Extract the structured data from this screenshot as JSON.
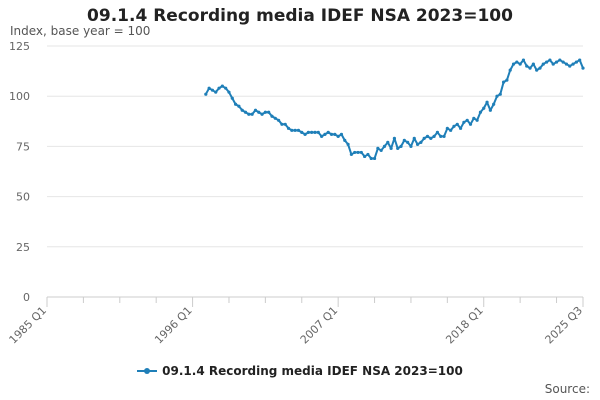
{
  "colors": {
    "series": "#1f7fb8",
    "grid": "#e6e6e6",
    "axis": "#cccccc",
    "tick_text": "#666666"
  },
  "source_label": "Source:",
  "chart_data": {
    "type": "line",
    "title": "09.1.4 Recording media IDEF NSA 2023=100",
    "ylabel": "Index, base year = 100",
    "xlabel": "",
    "ylim": [
      0,
      125
    ],
    "yticks": [
      0,
      25,
      50,
      75,
      100,
      125
    ],
    "xlim": [
      1985.0,
      2025.5
    ],
    "xticks": [
      {
        "label": "1985 Q1",
        "value": 1985.0
      },
      {
        "label": "1996 Q1",
        "value": 1996.0
      },
      {
        "label": "2007 Q1",
        "value": 2007.0
      },
      {
        "label": "2018 Q1",
        "value": 2018.0
      },
      {
        "label": "2025 Q3",
        "value": 2025.5
      }
    ],
    "minor_xticks": [
      1987.75,
      1990.5,
      1993.25,
      1998.75,
      2001.5,
      2004.25,
      2009.75,
      2012.5,
      2015.25,
      2020.75,
      2023.5
    ],
    "legend": "09.1.4 Recording media IDEF NSA 2023=100",
    "series": [
      {
        "name": "09.1.4 Recording media IDEF NSA 2023=100",
        "x": [
          1997.0,
          1997.25,
          1997.5,
          1997.75,
          1998.0,
          1998.25,
          1998.5,
          1998.75,
          1999.0,
          1999.25,
          1999.5,
          1999.75,
          2000.0,
          2000.25,
          2000.5,
          2000.75,
          2001.0,
          2001.25,
          2001.5,
          2001.75,
          2002.0,
          2002.25,
          2002.5,
          2002.75,
          2003.0,
          2003.25,
          2003.5,
          2003.75,
          2004.0,
          2004.25,
          2004.5,
          2004.75,
          2005.0,
          2005.25,
          2005.5,
          2005.75,
          2006.0,
          2006.25,
          2006.5,
          2006.75,
          2007.0,
          2007.25,
          2007.5,
          2007.75,
          2008.0,
          2008.25,
          2008.5,
          2008.75,
          2009.0,
          2009.25,
          2009.5,
          2009.75,
          2010.0,
          2010.25,
          2010.5,
          2010.75,
          2011.0,
          2011.25,
          2011.5,
          2011.75,
          2012.0,
          2012.25,
          2012.5,
          2012.75,
          2013.0,
          2013.25,
          2013.5,
          2013.75,
          2014.0,
          2014.25,
          2014.5,
          2014.75,
          2015.0,
          2015.25,
          2015.5,
          2015.75,
          2016.0,
          2016.25,
          2016.5,
          2016.75,
          2017.0,
          2017.25,
          2017.5,
          2017.75,
          2018.0,
          2018.25,
          2018.5,
          2018.75,
          2019.0,
          2019.25,
          2019.5,
          2019.75,
          2020.0,
          2020.25,
          2020.5,
          2020.75,
          2021.0,
          2021.25,
          2021.5,
          2021.75,
          2022.0,
          2022.25,
          2022.5,
          2022.75,
          2023.0,
          2023.25,
          2023.5,
          2023.75,
          2024.0,
          2024.25,
          2024.5,
          2024.75,
          2025.0,
          2025.25,
          2025.5
        ],
        "values": [
          101,
          104,
          103,
          102,
          104,
          105,
          104,
          102,
          99,
          96,
          95,
          93,
          92,
          91,
          91,
          93,
          92,
          91,
          92,
          92,
          90,
          89,
          88,
          86,
          86,
          84,
          83,
          83,
          83,
          82,
          81,
          82,
          82,
          82,
          82,
          80,
          81,
          82,
          81,
          81,
          80,
          81,
          78,
          76,
          71,
          72,
          72,
          72,
          70,
          71,
          69,
          69,
          74,
          73,
          75,
          77,
          74,
          79,
          74,
          75,
          78,
          77,
          75,
          79,
          76,
          77,
          79,
          80,
          79,
          80,
          82,
          80,
          80,
          84,
          83,
          85,
          86,
          84,
          87,
          88,
          86,
          89,
          88,
          92,
          94,
          97,
          93,
          96,
          100,
          101,
          107,
          108,
          113,
          116,
          117,
          116,
          118,
          115,
          114,
          116,
          113,
          114,
          116,
          117,
          118,
          116,
          117,
          118,
          117,
          116,
          115,
          116,
          117,
          118,
          114
        ]
      }
    ]
  }
}
